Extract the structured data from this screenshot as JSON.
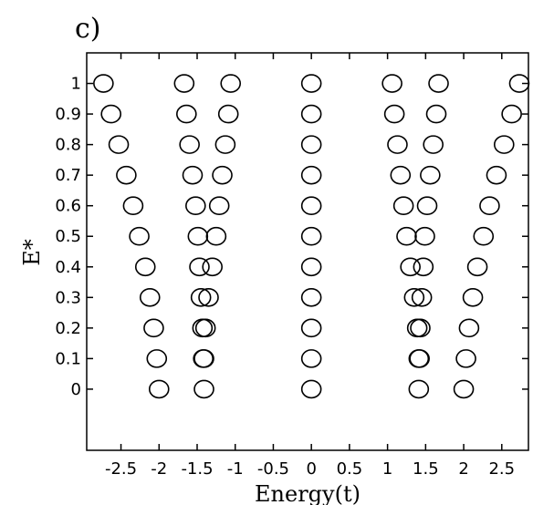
{
  "chart_data": {
    "type": "scatter",
    "panel_label": "c)",
    "title": "",
    "xlabel": "Energy(t)",
    "ylabel": "E*",
    "xlim": [
      -2.95,
      2.85
    ],
    "ylim": [
      -0.2,
      1.1
    ],
    "x_ticks": [
      -2.5,
      -2,
      -1.5,
      -1,
      -0.5,
      0,
      0.5,
      1,
      1.5,
      2,
      2.5
    ],
    "x_tick_labels": [
      "-2.5",
      "-2",
      "-1.5",
      "-1",
      "-0.5",
      "0",
      "0.5",
      "1",
      "1.5",
      "2",
      "2.5"
    ],
    "y_ticks": [
      0,
      0.1,
      0.2,
      0.3,
      0.4,
      0.5,
      0.6,
      0.7,
      0.8,
      0.9,
      1
    ],
    "y_tick_labels": [
      "0",
      "0.1",
      "0.2",
      "0.3",
      "0.4",
      "0.5",
      "0.6",
      "0.7",
      "0.8",
      "0.9",
      "1"
    ],
    "grid": false,
    "marker": "open-circle",
    "rows": [
      {
        "y": 1.0,
        "x": [
          -2.73,
          -1.67,
          -1.06,
          0.0,
          1.06,
          1.67,
          2.73
        ]
      },
      {
        "y": 0.9,
        "x": [
          -2.63,
          -1.64,
          -1.09,
          0.0,
          1.09,
          1.64,
          2.63
        ]
      },
      {
        "y": 0.8,
        "x": [
          -2.53,
          -1.6,
          -1.13,
          0.0,
          1.13,
          1.6,
          2.53
        ]
      },
      {
        "y": 0.7,
        "x": [
          -2.43,
          -1.56,
          -1.17,
          0.0,
          1.17,
          1.56,
          2.43
        ]
      },
      {
        "y": 0.6,
        "x": [
          -2.34,
          -1.52,
          -1.21,
          0.0,
          1.21,
          1.52,
          2.34
        ]
      },
      {
        "y": 0.5,
        "x": [
          -2.26,
          -1.49,
          -1.25,
          0.0,
          1.25,
          1.49,
          2.26
        ]
      },
      {
        "y": 0.4,
        "x": [
          -2.18,
          -1.47,
          -1.3,
          0.0,
          1.3,
          1.47,
          2.18
        ]
      },
      {
        "y": 0.3,
        "x": [
          -2.12,
          -1.45,
          -1.35,
          0.0,
          1.35,
          1.45,
          2.12
        ]
      },
      {
        "y": 0.2,
        "x": [
          -2.07,
          -1.43,
          -1.39,
          0.0,
          1.39,
          1.43,
          2.07
        ]
      },
      {
        "y": 0.1,
        "x": [
          -2.03,
          -1.42,
          -1.41,
          0.0,
          1.41,
          1.42,
          2.03
        ]
      },
      {
        "y": 0.0,
        "x": [
          -2.0,
          -1.41,
          0.0,
          1.41,
          2.0
        ]
      }
    ]
  }
}
